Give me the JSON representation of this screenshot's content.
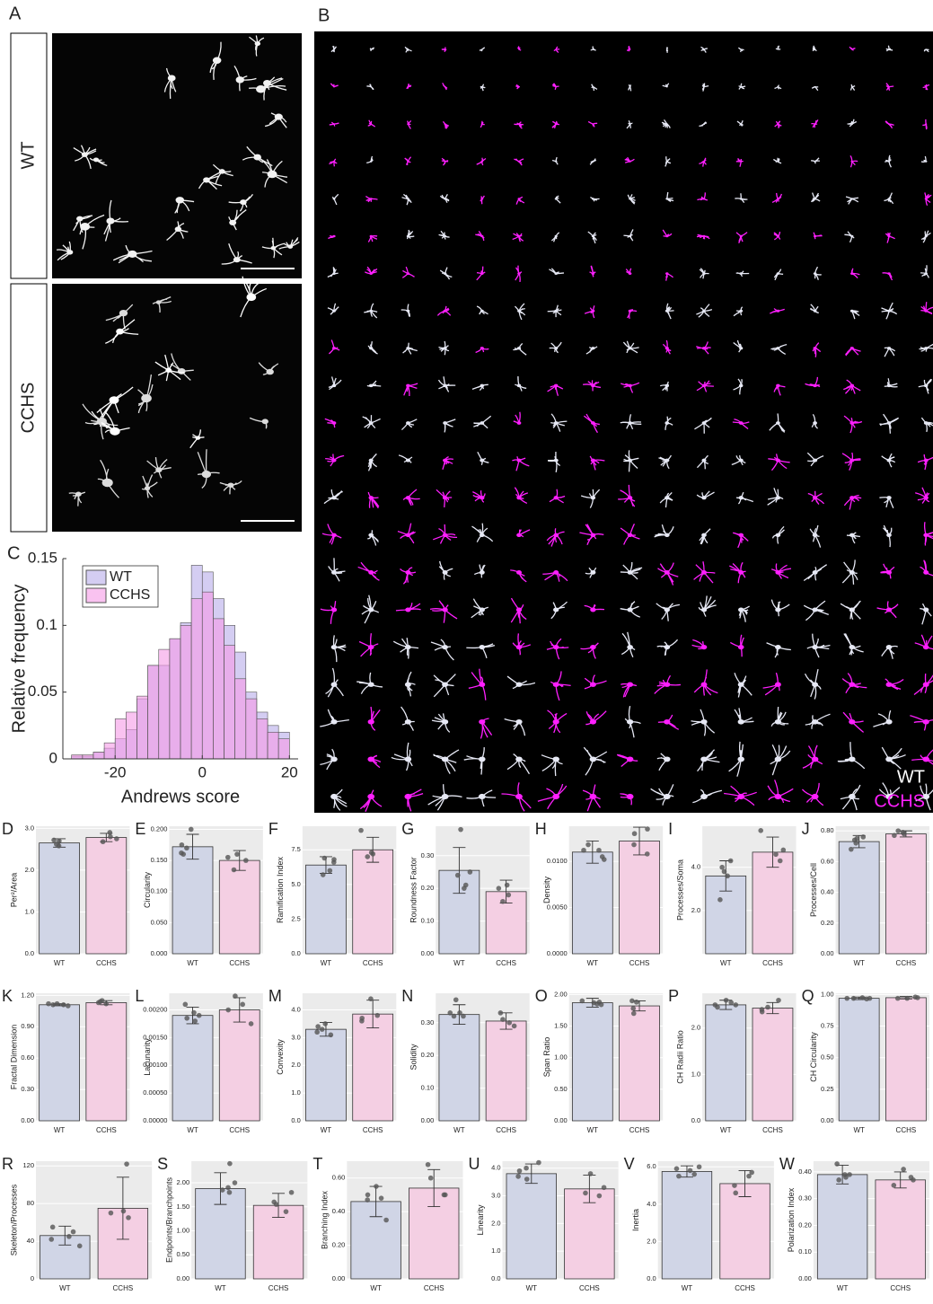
{
  "figure": {
    "panel_a": {
      "label": "A",
      "rows": [
        "WT",
        "CCHS"
      ]
    },
    "panel_b": {
      "label": "B",
      "legend": [
        "WT",
        "CCHS"
      ]
    }
  },
  "chart_data": [
    {
      "type": "histogram",
      "label": "C",
      "xlabel": "Andrews score",
      "ylabel": "Relative frequency",
      "legend": "upper-left",
      "bins": [
        -30,
        -27.5,
        -25,
        -22.5,
        -20,
        -17.5,
        -15,
        -12.5,
        -10,
        -7.5,
        -5,
        -2.5,
        0,
        2.5,
        5,
        7.5,
        10,
        12.5,
        15,
        17.5,
        20
      ],
      "series": [
        {
          "name": "WT",
          "color": "#b8acea",
          "values": [
            0.002,
            0.002,
            0.005,
            0.008,
            0.015,
            0.022,
            0.045,
            0.07,
            0.07,
            0.09,
            0.102,
            0.145,
            0.14,
            0.12,
            0.1,
            0.08,
            0.05,
            0.035,
            0.025,
            0.02
          ]
        },
        {
          "name": "CCHS",
          "color": "#f59ae6",
          "values": [
            0.003,
            0.003,
            0.005,
            0.012,
            0.03,
            0.035,
            0.047,
            0.07,
            0.082,
            0.09,
            0.1,
            0.12,
            0.125,
            0.105,
            0.085,
            0.06,
            0.045,
            0.03,
            0.02,
            0.015
          ]
        }
      ],
      "xlim": [
        -32,
        22
      ],
      "xticks": [
        -20,
        0,
        20
      ],
      "ylim": [
        0,
        0.15
      ],
      "yticks": [
        0,
        0.05,
        0.1,
        0.15
      ]
    },
    {
      "type": "bar",
      "label": "D",
      "ylabel": "Per²/Area",
      "categories": [
        "WT",
        "CCHS"
      ],
      "values": [
        2.65,
        2.78
      ],
      "errors": [
        0.1,
        0.1
      ],
      "points": [
        [
          2.72,
          2.7,
          2.58,
          2.62
        ],
        [
          2.75,
          2.68,
          2.9,
          2.8
        ]
      ],
      "colors": [
        "#d0d5e6",
        "#f4cfe3"
      ],
      "ylim": [
        0,
        3.05
      ],
      "yticks": [
        {
          "value": 0,
          "label": "0.0"
        },
        {
          "value": 1,
          "label": "1.0"
        },
        {
          "value": 2,
          "label": "2.0"
        },
        {
          "value": 3,
          "label": "3.0"
        }
      ]
    },
    {
      "type": "bar",
      "label": "E",
      "ylabel": "Circularity",
      "categories": [
        "WT",
        "CCHS"
      ],
      "values": [
        0.172,
        0.15
      ],
      "errors": [
        0.02,
        0.016
      ],
      "points": [
        [
          0.2,
          0.16,
          0.162,
          0.17,
          0.175
        ],
        [
          0.15,
          0.135,
          0.155,
          0.16
        ]
      ],
      "colors": [
        "#d0d5e6",
        "#f4cfe3"
      ],
      "ylim": [
        0,
        0.205
      ],
      "yticks": [
        {
          "value": 0,
          "label": "0.000"
        },
        {
          "value": 0.05,
          "label": "0.050"
        },
        {
          "value": 0.1,
          "label": "0.100"
        },
        {
          "value": 0.15,
          "label": "0.150"
        },
        {
          "value": 0.2,
          "label": "0.200"
        }
      ]
    },
    {
      "type": "bar",
      "label": "F",
      "ylabel": "Ramification Index",
      "categories": [
        "WT",
        "CCHS"
      ],
      "values": [
        6.4,
        7.5
      ],
      "errors": [
        0.6,
        0.9
      ],
      "points": [
        [
          6.8,
          6.6,
          6.9,
          5.7,
          6.0
        ],
        [
          7.2,
          7.0,
          8.9,
          7.3
        ]
      ],
      "colors": [
        "#d0d5e6",
        "#f4cfe3"
      ],
      "ylim": [
        0,
        9.2
      ],
      "yticks": [
        {
          "value": 0,
          "label": "0.0"
        },
        2.5,
        {
          "value": 5,
          "label": "5.0"
        },
        7.5
      ]
    },
    {
      "type": "bar",
      "label": "G",
      "ylabel": "Roundness Factor",
      "categories": [
        "WT",
        "CCHS"
      ],
      "values": [
        0.255,
        0.19
      ],
      "errors": [
        0.07,
        0.035
      ],
      "points": [
        [
          0.38,
          0.25,
          0.24,
          0.21,
          0.2
        ],
        [
          0.2,
          0.21,
          0.18,
          0.16
        ]
      ],
      "colors": [
        "#d0d5e6",
        "#f4cfe3"
      ],
      "ylim": [
        0,
        0.39
      ],
      "yticks": [
        {
          "value": 0,
          "label": "0.00"
        },
        {
          "value": 0.1,
          "label": "0.10"
        },
        {
          "value": 0.2,
          "label": "0.20"
        },
        {
          "value": 0.3,
          "label": "0.30"
        }
      ]
    },
    {
      "type": "bar",
      "label": "H",
      "ylabel": "Density",
      "categories": [
        "WT",
        "CCHS"
      ],
      "values": [
        0.011,
        0.0122
      ],
      "errors": [
        0.0012,
        0.0015
      ],
      "points": [
        [
          0.0118,
          0.0112,
          0.0105,
          0.0102,
          0.0112
        ],
        [
          0.0135,
          0.0118,
          0.0108,
          0.013
        ]
      ],
      "colors": [
        "#d0d5e6",
        "#f4cfe3"
      ],
      "ylim": [
        0,
        0.0138
      ],
      "yticks": [
        {
          "value": 0,
          "label": "0.0000"
        },
        {
          "value": 0.005,
          "label": "0.0050"
        },
        {
          "value": 0.01,
          "label": "0.0100"
        }
      ]
    },
    {
      "type": "bar",
      "label": "I",
      "ylabel": "Processes/Soma",
      "categories": [
        "WT",
        "CCHS"
      ],
      "values": [
        3.6,
        4.7
      ],
      "errors": [
        0.7,
        0.7
      ],
      "points": [
        [
          4.0,
          3.8,
          3.6,
          2.5,
          4.3
        ],
        [
          5.7,
          4.6,
          4.3,
          4.8
        ]
      ],
      "colors": [
        "#d0d5e6",
        "#f4cfe3"
      ],
      "ylim": [
        0,
        5.9
      ],
      "yticks": [
        {
          "value": 2,
          "label": "2.0"
        },
        {
          "value": 4,
          "label": "4.0"
        }
      ]
    },
    {
      "type": "bar",
      "label": "J",
      "ylabel": "Processes/Cell",
      "categories": [
        "WT",
        "CCHS"
      ],
      "values": [
        0.73,
        0.78
      ],
      "errors": [
        0.04,
        0.02
      ],
      "points": [
        [
          0.76,
          0.75,
          0.72,
          0.68,
          0.74
        ],
        [
          0.8,
          0.78,
          0.77,
          0.79
        ]
      ],
      "colors": [
        "#d0d5e6",
        "#f4cfe3"
      ],
      "ylim": [
        0,
        0.83
      ],
      "yticks": [
        {
          "value": 0,
          "label": "0.00"
        },
        {
          "value": 0.2,
          "label": "0.20"
        },
        {
          "value": 0.4,
          "label": "0.40"
        },
        {
          "value": 0.6,
          "label": "0.60"
        },
        {
          "value": 0.8,
          "label": "0.80"
        }
      ]
    },
    {
      "type": "bar",
      "label": "K",
      "ylabel": "Fractal Dimension",
      "categories": [
        "WT",
        "CCHS"
      ],
      "values": [
        1.11,
        1.13
      ],
      "errors": [
        0.01,
        0.02
      ],
      "points": [
        [
          1.1,
          1.11,
          1.12,
          1.11,
          1.12
        ],
        [
          1.12,
          1.15,
          1.13,
          1.14
        ]
      ],
      "colors": [
        "#d0d5e6",
        "#f4cfe3"
      ],
      "ylim": [
        0,
        1.22
      ],
      "yticks": [
        {
          "value": 0,
          "label": "0.00"
        },
        {
          "value": 0.3,
          "label": "0.30"
        },
        {
          "value": 0.6,
          "label": "0.60"
        },
        {
          "value": 0.9,
          "label": "0.90"
        },
        {
          "value": 1.2,
          "label": "1.20"
        }
      ]
    },
    {
      "type": "bar",
      "label": "L",
      "ylabel": "Lacunarity",
      "categories": [
        "WT",
        "CCHS"
      ],
      "values": [
        0.0019,
        0.002
      ],
      "errors": [
        0.00015,
        0.00022
      ],
      "points": [
        [
          0.0021,
          0.00195,
          0.0018,
          0.00185,
          0.0019
        ],
        [
          0.00225,
          0.0021,
          0.002,
          0.00175
        ]
      ],
      "colors": [
        "#d0d5e6",
        "#f4cfe3"
      ],
      "ylim": [
        0,
        0.0023
      ],
      "yticks": [
        {
          "value": 0,
          "label": "0.00000"
        },
        {
          "value": 0.0005,
          "label": "0.00050"
        },
        {
          "value": 0.001,
          "label": "0.00100"
        },
        {
          "value": 0.0015,
          "label": "0.00150"
        },
        {
          "value": 0.002,
          "label": "0.00200"
        }
      ]
    },
    {
      "type": "bar",
      "label": "M",
      "ylabel": "Convexity",
      "categories": [
        "WT",
        "CCHS"
      ],
      "values": [
        3.3,
        3.85
      ],
      "errors": [
        0.25,
        0.5
      ],
      "points": [
        [
          3.4,
          3.2,
          3.3,
          3.1,
          3.5
        ],
        [
          4.4,
          3.6,
          3.8,
          3.7
        ]
      ],
      "colors": [
        "#d0d5e6",
        "#f4cfe3"
      ],
      "ylim": [
        0,
        4.6
      ],
      "yticks": [
        {
          "value": 0,
          "label": "0.0"
        },
        {
          "value": 1,
          "label": "1.0"
        },
        {
          "value": 2,
          "label": "2.0"
        },
        {
          "value": 3,
          "label": "3.0"
        },
        {
          "value": 4,
          "label": "4.0"
        }
      ]
    },
    {
      "type": "bar",
      "label": "N",
      "ylabel": "Solidity",
      "categories": [
        "WT",
        "CCHS"
      ],
      "values": [
        0.325,
        0.305
      ],
      "errors": [
        0.03,
        0.025
      ],
      "points": [
        [
          0.37,
          0.33,
          0.32,
          0.32,
          0.33
        ],
        [
          0.33,
          0.31,
          0.29,
          0.3
        ]
      ],
      "colors": [
        "#d0d5e6",
        "#f4cfe3"
      ],
      "ylim": [
        0,
        0.39
      ],
      "yticks": [
        {
          "value": 0,
          "label": "0.00"
        },
        {
          "value": 0.1,
          "label": "0.10"
        },
        {
          "value": 0.2,
          "label": "0.20"
        },
        {
          "value": 0.3,
          "label": "0.30"
        }
      ]
    },
    {
      "type": "bar",
      "label": "O",
      "ylabel": "Span Ratio",
      "categories": [
        "WT",
        "CCHS"
      ],
      "values": [
        1.87,
        1.82
      ],
      "errors": [
        0.07,
        0.08
      ],
      "points": [
        [
          1.88,
          1.9,
          1.85,
          1.87,
          1.84
        ],
        [
          1.78,
          1.7,
          1.9,
          1.88
        ]
      ],
      "colors": [
        "#d0d5e6",
        "#f4cfe3"
      ],
      "ylim": [
        0,
        2.02
      ],
      "yticks": [
        {
          "value": 0,
          "label": "0.00"
        },
        {
          "value": 0.5,
          "label": "0.50"
        },
        {
          "value": 1,
          "label": "1.00"
        },
        {
          "value": 1.5,
          "label": "1.50"
        },
        {
          "value": 2,
          "label": "2.00"
        }
      ]
    },
    {
      "type": "bar",
      "label": "P",
      "ylabel": "CH Radii Ratio",
      "categories": [
        "WT",
        "CCHS"
      ],
      "values": [
        2.5,
        2.43
      ],
      "errors": [
        0.1,
        0.12
      ],
      "points": [
        [
          2.55,
          2.5,
          2.45,
          2.6,
          2.5
        ],
        [
          2.6,
          2.45,
          2.35,
          2.4
        ]
      ],
      "colors": [
        "#d0d5e6",
        "#f4cfe3"
      ],
      "ylim": [
        0,
        2.75
      ],
      "yticks": [
        {
          "value": 0,
          "label": "0.0"
        },
        {
          "value": 1,
          "label": "1.0"
        },
        {
          "value": 2,
          "label": "2.0"
        }
      ]
    },
    {
      "type": "bar",
      "label": "Q",
      "ylabel": "CH Circularity",
      "categories": [
        "WT",
        "CCHS"
      ],
      "values": [
        0.97,
        0.975
      ],
      "errors": [
        0.01,
        0.01
      ],
      "points": [
        [
          0.97,
          0.975,
          0.97,
          0.965,
          0.97
        ],
        [
          0.98,
          0.97,
          0.975,
          0.97
        ]
      ],
      "colors": [
        "#d0d5e6",
        "#f4cfe3"
      ],
      "ylim": [
        0,
        1.01
      ],
      "yticks": [
        {
          "value": 0,
          "label": "0.00"
        },
        0.25,
        {
          "value": 0.5,
          "label": "0.50"
        },
        0.75,
        {
          "value": 1,
          "label": "1.00"
        }
      ]
    },
    {
      "type": "bar",
      "label": "R",
      "ylabel": "Skeleton/Processes",
      "categories": [
        "WT",
        "CCHS"
      ],
      "values": [
        46,
        75
      ],
      "errors": [
        10,
        33
      ],
      "points": [
        [
          55,
          45,
          50,
          35,
          42
        ],
        [
          122,
          70,
          65,
          72
        ]
      ],
      "colors": [
        "#d0d5e6",
        "#f4cfe3"
      ],
      "ylim": [
        0,
        125
      ],
      "yticks": [
        0,
        40,
        80,
        120
      ]
    },
    {
      "type": "bar",
      "label": "S",
      "ylabel": "Endpoints/Branchpoints",
      "categories": [
        "WT",
        "CCHS"
      ],
      "values": [
        1.88,
        1.53
      ],
      "errors": [
        0.33,
        0.25
      ],
      "points": [
        [
          2.4,
          2.0,
          1.8,
          1.9,
          1.85
        ],
        [
          1.8,
          1.6,
          1.4,
          1.55
        ]
      ],
      "colors": [
        "#d0d5e6",
        "#f4cfe3"
      ],
      "ylim": [
        0,
        2.45
      ],
      "yticks": [
        {
          "value": 0,
          "label": "0.00"
        },
        {
          "value": 0.5,
          "label": "0.50"
        },
        {
          "value": 1,
          "label": "1.00"
        },
        {
          "value": 1.5,
          "label": "1.50"
        },
        {
          "value": 2,
          "label": "2.00"
        }
      ]
    },
    {
      "type": "bar",
      "label": "T",
      "ylabel": "Branching Index",
      "categories": [
        "WT",
        "CCHS"
      ],
      "values": [
        0.46,
        0.54
      ],
      "errors": [
        0.09,
        0.11
      ],
      "points": [
        [
          0.55,
          0.48,
          0.35,
          0.5,
          0.47
        ],
        [
          0.68,
          0.6,
          0.5,
          0.5
        ]
      ],
      "colors": [
        "#d0d5e6",
        "#f4cfe3"
      ],
      "ylim": [
        0,
        0.7
      ],
      "yticks": [
        {
          "value": 0,
          "label": "0.00"
        },
        {
          "value": 0.2,
          "label": "0.20"
        },
        {
          "value": 0.4,
          "label": "0.40"
        },
        {
          "value": 0.6,
          "label": "0.60"
        }
      ]
    },
    {
      "type": "bar",
      "label": "U",
      "ylabel": "Linearity",
      "categories": [
        "WT",
        "CCHS"
      ],
      "values": [
        3.8,
        3.25
      ],
      "errors": [
        0.35,
        0.5
      ],
      "points": [
        [
          4.2,
          3.9,
          3.7,
          3.6,
          4.0
        ],
        [
          3.8,
          3.3,
          3.0,
          3.1
        ]
      ],
      "colors": [
        "#d0d5e6",
        "#f4cfe3"
      ],
      "ylim": [
        0,
        4.25
      ],
      "yticks": [
        {
          "value": 0,
          "label": "0.0"
        },
        {
          "value": 1,
          "label": "1.0"
        },
        {
          "value": 2,
          "label": "2.0"
        },
        {
          "value": 3,
          "label": "3.0"
        },
        {
          "value": 4,
          "label": "4.0"
        }
      ]
    },
    {
      "type": "bar",
      "label": "V",
      "ylabel": "Inertia",
      "categories": [
        "WT",
        "CCHS"
      ],
      "values": [
        5.75,
        5.1
      ],
      "errors": [
        0.3,
        0.7
      ],
      "points": [
        [
          6.0,
          5.8,
          5.6,
          5.5,
          5.9
        ],
        [
          5.7,
          5.5,
          4.6,
          5.0
        ]
      ],
      "colors": [
        "#d0d5e6",
        "#f4cfe3"
      ],
      "ylim": [
        0,
        6.3
      ],
      "yticks": [
        {
          "value": 0,
          "label": "0.0"
        },
        {
          "value": 2,
          "label": "2.0"
        },
        {
          "value": 4,
          "label": "4.0"
        },
        {
          "value": 6,
          "label": "6.0"
        }
      ]
    },
    {
      "type": "bar",
      "label": "W",
      "ylabel": "Polarization Index",
      "categories": [
        "WT",
        "CCHS"
      ],
      "values": [
        0.39,
        0.37
      ],
      "errors": [
        0.035,
        0.03
      ],
      "points": [
        [
          0.43,
          0.39,
          0.38,
          0.37,
          0.39
        ],
        [
          0.41,
          0.37,
          0.35,
          0.38
        ]
      ],
      "colors": [
        "#d0d5e6",
        "#f4cfe3"
      ],
      "ylim": [
        0,
        0.44
      ],
      "yticks": [
        {
          "value": 0,
          "label": "0.00"
        },
        {
          "value": 0.1,
          "label": "0.10"
        },
        {
          "value": 0.2,
          "label": "0.20"
        },
        {
          "value": 0.3,
          "label": "0.30"
        },
        {
          "value": 0.4,
          "label": "0.40"
        }
      ]
    }
  ]
}
